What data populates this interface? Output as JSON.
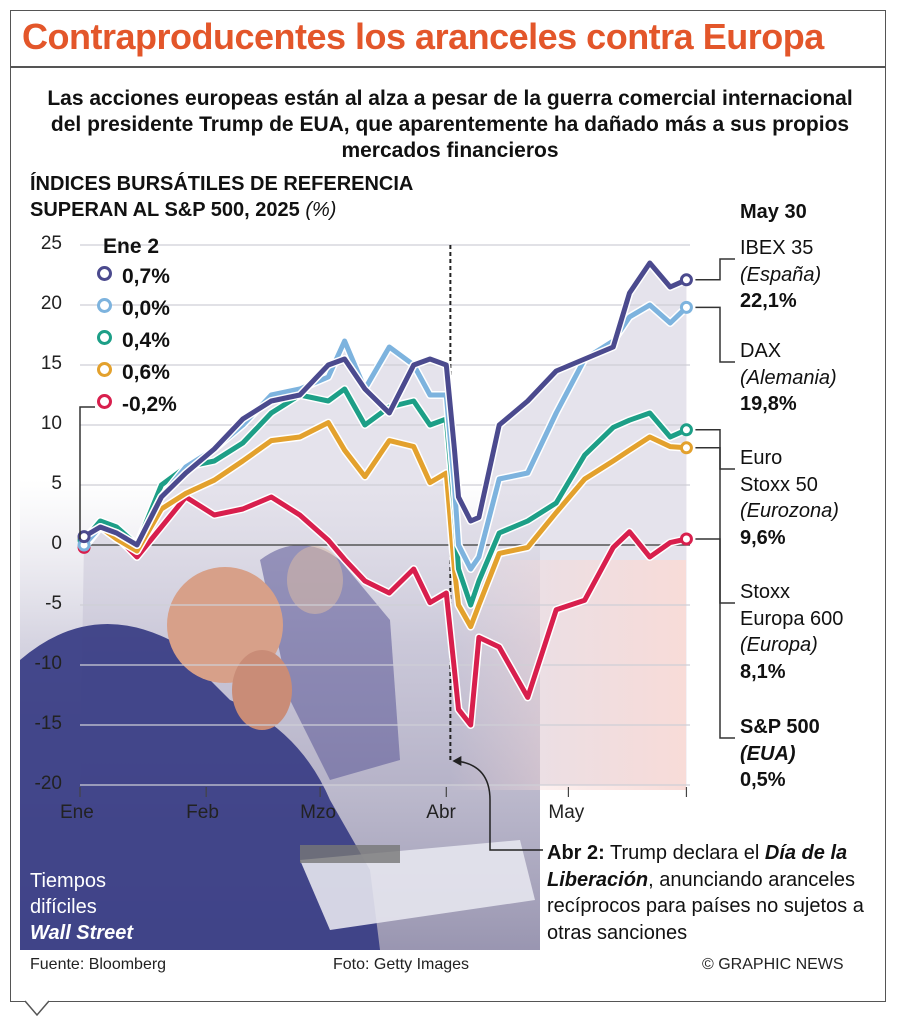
{
  "title": "Contraproducentes los aranceles contra Europa",
  "subtitle": "Las acciones europeas están al alza a pesar de la guerra comercial internacional del presidente Trump de EUA, que aparentemente ha dañado más a sus propios mercados financieros",
  "chart_data": {
    "type": "line",
    "title_line1": "ÍNDICES BURSÁTILES DE REFERENCIA",
    "title_line2": "SUPERAN AL S&P 500, 2025",
    "unit": "(%)",
    "ylim": [
      -20,
      25
    ],
    "yticks": [
      "25",
      "20",
      "15",
      "10",
      "5",
      "0",
      "-5",
      "-10",
      "-15",
      "-20"
    ],
    "ytick_values": [
      25,
      20,
      15,
      10,
      5,
      0,
      -5,
      -10,
      -15,
      -20
    ],
    "xticks": [
      {
        "label": "Ene",
        "date": "2025-01-01"
      },
      {
        "label": "Feb",
        "date": "2025-02-01"
      },
      {
        "label": "Mzo",
        "date": "2025-03-01"
      },
      {
        "label": "Abr",
        "date": "2025-04-01"
      },
      {
        "label": "May",
        "date": "2025-05-01"
      }
    ],
    "grid": true,
    "start_label": "Ene 2",
    "end_label": "May 30",
    "event_date": "2025-04-02",
    "dates": [
      "2025-01-02",
      "2025-01-06",
      "2025-01-10",
      "2025-01-15",
      "2025-01-21",
      "2025-01-27",
      "2025-02-03",
      "2025-02-10",
      "2025-02-17",
      "2025-02-24",
      "2025-03-03",
      "2025-03-07",
      "2025-03-12",
      "2025-03-18",
      "2025-03-24",
      "2025-03-28",
      "2025-04-01",
      "2025-04-03",
      "2025-04-04",
      "2025-04-07",
      "2025-04-09",
      "2025-04-14",
      "2025-04-21",
      "2025-04-28",
      "2025-05-05",
      "2025-05-12",
      "2025-05-16",
      "2025-05-21",
      "2025-05-26",
      "2025-05-30"
    ],
    "series": [
      {
        "name": "IBEX 35",
        "region": "(España)",
        "start": "0,7%",
        "end": "22,1%",
        "color": "#4b4a8e",
        "values": [
          0.7,
          1.5,
          1,
          0,
          4,
          6,
          8,
          10.5,
          12,
          12.5,
          15,
          15.5,
          13,
          11,
          15,
          15.5,
          15,
          8,
          4,
          2,
          2.3,
          10,
          12,
          14.5,
          15.5,
          16.5,
          21,
          23.5,
          21.5,
          22.1
        ]
      },
      {
        "name": "DAX",
        "region": "(Alemania)",
        "start": "0,0%",
        "end": "19,8%",
        "color": "#7db3de",
        "values": [
          0,
          1.5,
          1,
          0,
          4,
          6.5,
          8,
          10,
          12.5,
          13,
          14,
          17,
          13,
          16.5,
          15,
          12.5,
          12.5,
          5,
          0,
          -2,
          -1,
          5.5,
          6,
          11,
          15.5,
          17,
          19,
          20,
          18.5,
          19.8
        ]
      },
      {
        "name": "Euro Stoxx 50",
        "region": "(Eurozona)",
        "start": "0,4%",
        "end": "9,6%",
        "color": "#1d9f87",
        "values": [
          0.4,
          2,
          1.5,
          0,
          5,
          6.5,
          7,
          8.5,
          11,
          12.5,
          12,
          13,
          10,
          11.5,
          12,
          10,
          10.5,
          3,
          -2,
          -5,
          -3,
          1,
          2,
          3.5,
          7.5,
          9.8,
          10.4,
          11,
          9,
          9.6
        ]
      },
      {
        "name": "Stoxx Europa 600",
        "region": "(Europa)",
        "start": "0,6%",
        "end": "8,1%",
        "color": "#e3a12d",
        "values": [
          0.6,
          1.5,
          0.5,
          -0.5,
          3,
          4.3,
          5.4,
          7,
          8.7,
          9,
          10.2,
          7.9,
          5.7,
          8.7,
          8.2,
          5.2,
          6,
          -2,
          -5,
          -6.8,
          -5,
          -0.7,
          -0.2,
          2.7,
          5.5,
          7,
          7.9,
          9,
          8.2,
          8.1
        ]
      },
      {
        "name": "S&P 500",
        "region": "(EUA)",
        "start": "-0,2%",
        "end": "0,5%",
        "color": "#d81f4d",
        "values": [
          -0.2,
          1.5,
          0.7,
          -1,
          1.5,
          4,
          2.5,
          3,
          4,
          2.5,
          0.4,
          -1.2,
          -3,
          -4,
          -2,
          -4.8,
          -4,
          -10.4,
          -13.7,
          -15,
          -7.7,
          -8.5,
          -12.7,
          -5.4,
          -4.6,
          -0.2,
          1.1,
          -1,
          0.2,
          0.5
        ]
      }
    ]
  },
  "right_labels": [
    {
      "l1": "IBEX 35",
      "l2": "(España)",
      "l3": "22,1%"
    },
    {
      "l1": "DAX",
      "l2": "(Alemania)",
      "l3": "19,8%"
    },
    {
      "l1": "Euro",
      "l1b": "Stoxx 50",
      "l2": "(Eurozona)",
      "l3": "9,6%"
    },
    {
      "l1": "Stoxx",
      "l1b": "Europa 600",
      "l2": "(Europa)",
      "l3": "8,1%"
    },
    {
      "l1": "S&P 500",
      "l2": "(EUA)",
      "l3": "0,5%"
    }
  ],
  "annotation": {
    "bold": "Abr 2:",
    "text1": " Trump declara el ",
    "italic": "Día de la Liberación",
    "text2": ", anunciando aranceles recíprocos para países no sujetos a otras sanciones"
  },
  "photo_caption": {
    "line1": "Tiempos",
    "line2": "difíciles",
    "line3": "Wall Street"
  },
  "footer": {
    "source": "Fuente: Bloomberg",
    "photo": "Foto: Getty Images",
    "credit": "© GRAPHIC NEWS"
  }
}
